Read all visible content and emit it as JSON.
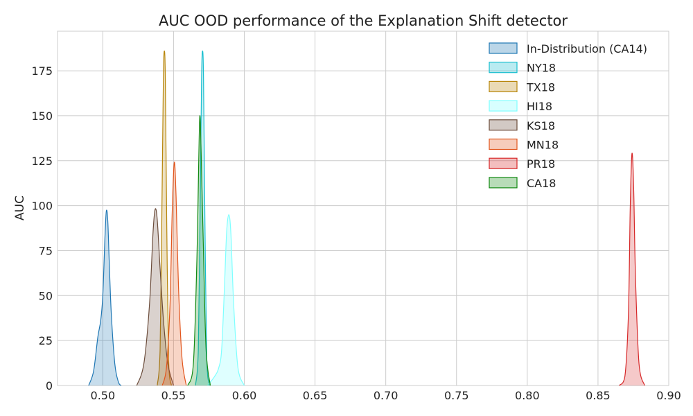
{
  "chart_data": {
    "type": "area",
    "title": "AUC OOD performance of the Explanation Shift detector",
    "xlabel": "",
    "ylabel": "AUC",
    "xlim": [
      0.468,
      0.9
    ],
    "ylim": [
      0,
      197
    ],
    "xticks": [
      "0.50",
      "0.55",
      "0.60",
      "0.65",
      "0.70",
      "0.75",
      "0.80",
      "0.85",
      "0.90"
    ],
    "xtick_values": [
      0.5,
      0.55,
      0.6,
      0.65,
      0.7,
      0.75,
      0.8,
      0.85,
      0.9
    ],
    "yticks": [
      "0",
      "25",
      "50",
      "75",
      "100",
      "125",
      "150",
      "175"
    ],
    "ytick_values": [
      0,
      25,
      50,
      75,
      100,
      125,
      150,
      175
    ],
    "grid": true,
    "legend_position": "top-right",
    "series": [
      {
        "name": "In-Distribution (CA14)",
        "color": "#1f77b4",
        "x": [
          0.49,
          0.4935,
          0.4965,
          0.4985,
          0.5,
          0.5015,
          0.5025,
          0.5035,
          0.5045,
          0.506,
          0.5085,
          0.511,
          0.513
        ],
        "y": [
          0,
          8,
          27,
          36,
          50,
          82,
          97,
          92,
          70,
          40,
          12,
          2,
          0
        ]
      },
      {
        "name": "NY18",
        "color": "#17becf",
        "x": [
          0.5655,
          0.5675,
          0.5688,
          0.5698,
          0.5705,
          0.5712,
          0.5722,
          0.5735,
          0.5755
        ],
        "y": [
          0,
          20,
          100,
          170,
          186,
          170,
          90,
          15,
          0
        ]
      },
      {
        "name": "TX18",
        "color": "#b8860b",
        "x": [
          0.5385,
          0.5405,
          0.5418,
          0.5428,
          0.5435,
          0.5442,
          0.5452,
          0.5465,
          0.5485
        ],
        "y": [
          0,
          20,
          100,
          170,
          186,
          170,
          90,
          15,
          0
        ]
      },
      {
        "name": "HI18",
        "color": "#7fffff",
        "x": [
          0.574,
          0.579,
          0.582,
          0.584,
          0.586,
          0.5875,
          0.589,
          0.5905,
          0.5925,
          0.5955,
          0.6
        ],
        "y": [
          0,
          5,
          10,
          20,
          55,
          85,
          95,
          85,
          45,
          10,
          0
        ]
      },
      {
        "name": "KS18",
        "color": "#6b4c3b",
        "x": [
          0.524,
          0.529,
          0.533,
          0.5355,
          0.537,
          0.5385,
          0.5405,
          0.543,
          0.546,
          0.55
        ],
        "y": [
          0,
          12,
          45,
          85,
          98,
          92,
          65,
          35,
          12,
          0
        ]
      },
      {
        "name": "MN18",
        "color": "#e2561d",
        "x": [
          0.542,
          0.545,
          0.5475,
          0.549,
          0.5505,
          0.5518,
          0.5535,
          0.556,
          0.559
        ],
        "y": [
          0,
          10,
          45,
          95,
          124,
          105,
          55,
          15,
          0
        ]
      },
      {
        "name": "PR18",
        "color": "#d62728",
        "x": [
          0.865,
          0.869,
          0.8715,
          0.8728,
          0.874,
          0.8752,
          0.8765,
          0.879,
          0.883
        ],
        "y": [
          0,
          5,
          40,
          100,
          129,
          110,
          60,
          12,
          0
        ]
      },
      {
        "name": "CA18",
        "color": "#138a13",
        "x": [
          0.56,
          0.564,
          0.5665,
          0.5678,
          0.5686,
          0.5695,
          0.571,
          0.573,
          0.576
        ],
        "y": [
          0,
          12,
          70,
          125,
          150,
          130,
          80,
          20,
          0
        ]
      }
    ]
  }
}
